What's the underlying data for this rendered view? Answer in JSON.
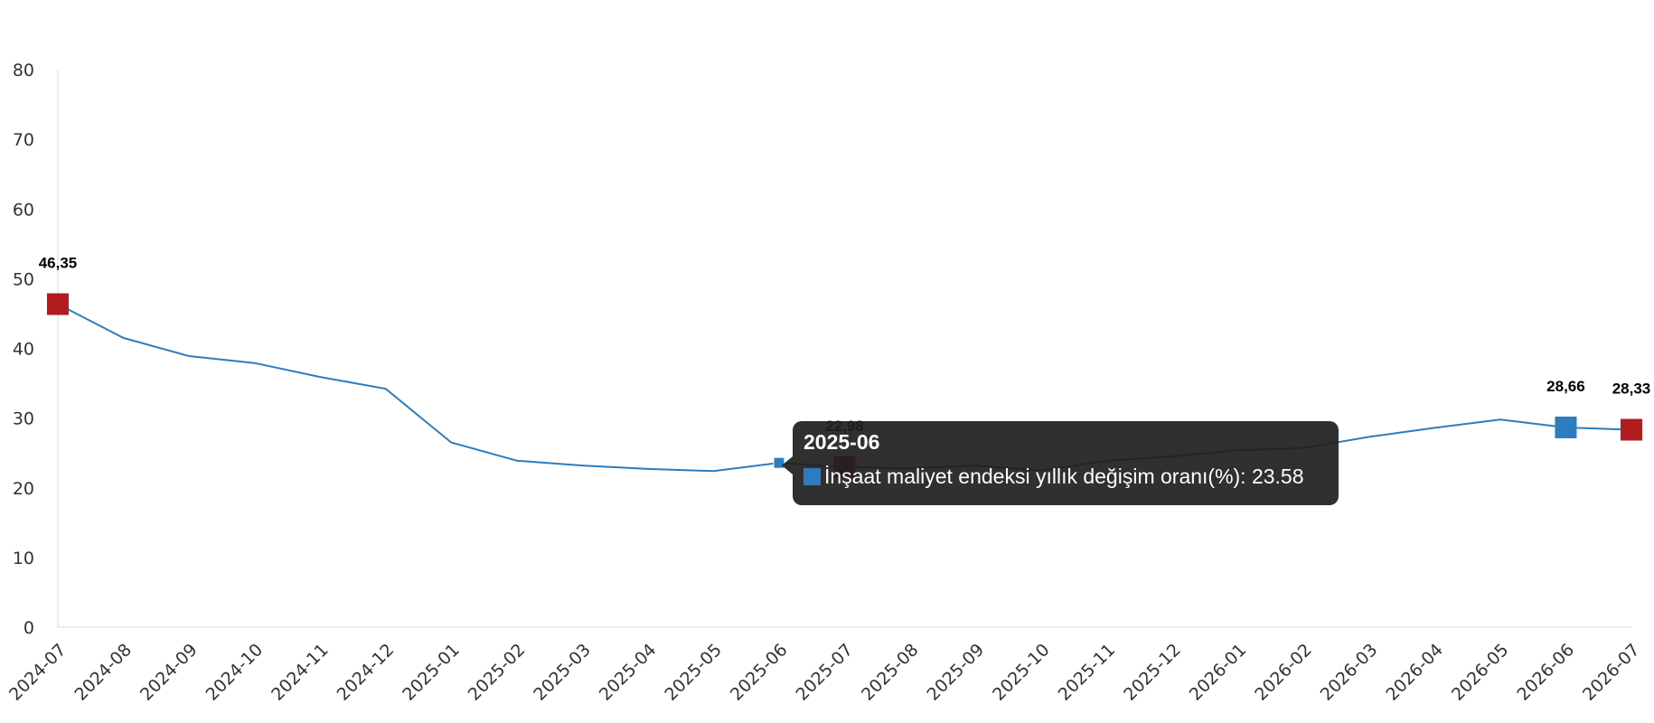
{
  "chart_data": {
    "type": "line",
    "title": "",
    "xlabel": "",
    "ylabel": "",
    "ylim": [
      0,
      80
    ],
    "yticks": [
      0,
      10,
      20,
      30,
      40,
      50,
      60,
      70,
      80
    ],
    "grid": false,
    "categories": [
      "2024-07",
      "2024-08",
      "2024-09",
      "2024-10",
      "2024-11",
      "2024-12",
      "2025-01",
      "2025-02",
      "2025-03",
      "2025-04",
      "2025-05",
      "2025-06",
      "2025-07",
      "2025-08",
      "2025-09",
      "2025-10",
      "2025-11",
      "2025-12",
      "2026-01",
      "2026-02",
      "2026-03",
      "2026-04",
      "2026-05",
      "2026-06",
      "2026-07"
    ],
    "series": [
      {
        "name": "İnşaat maliyet endeksi yıllık değişim oranı(%)",
        "color": "#2e7cc0",
        "values": [
          46.35,
          41.5,
          38.9,
          37.9,
          35.9,
          34.2,
          26.5,
          23.9,
          23.2,
          22.7,
          22.4,
          23.58,
          22.98,
          22.8,
          23.2,
          22.5,
          23.9,
          24.5,
          25.4,
          25.7,
          27.3,
          28.6,
          29.8,
          28.66,
          28.33
        ]
      }
    ],
    "highlighted_points": [
      {
        "index": 0,
        "label": "46,35",
        "color": "#b01c1f"
      },
      {
        "index": 12,
        "label": "22,98",
        "color": "#b01c1f"
      },
      {
        "index": 23,
        "label": "28,66",
        "color": "#2e7cc0"
      },
      {
        "index": 24,
        "label": "28,33",
        "color": "#b01c1f"
      }
    ],
    "hovered_index": 11
  },
  "tooltip": {
    "title": "2025-06",
    "series_name": "İnşaat maliyet endeksi yıllık değişim oranı(%)",
    "value": "23.58",
    "text": "İnşaat maliyet endeksi yıllık değişim oranı(%): 23.58",
    "swatch_color": "#2e7cc0"
  }
}
